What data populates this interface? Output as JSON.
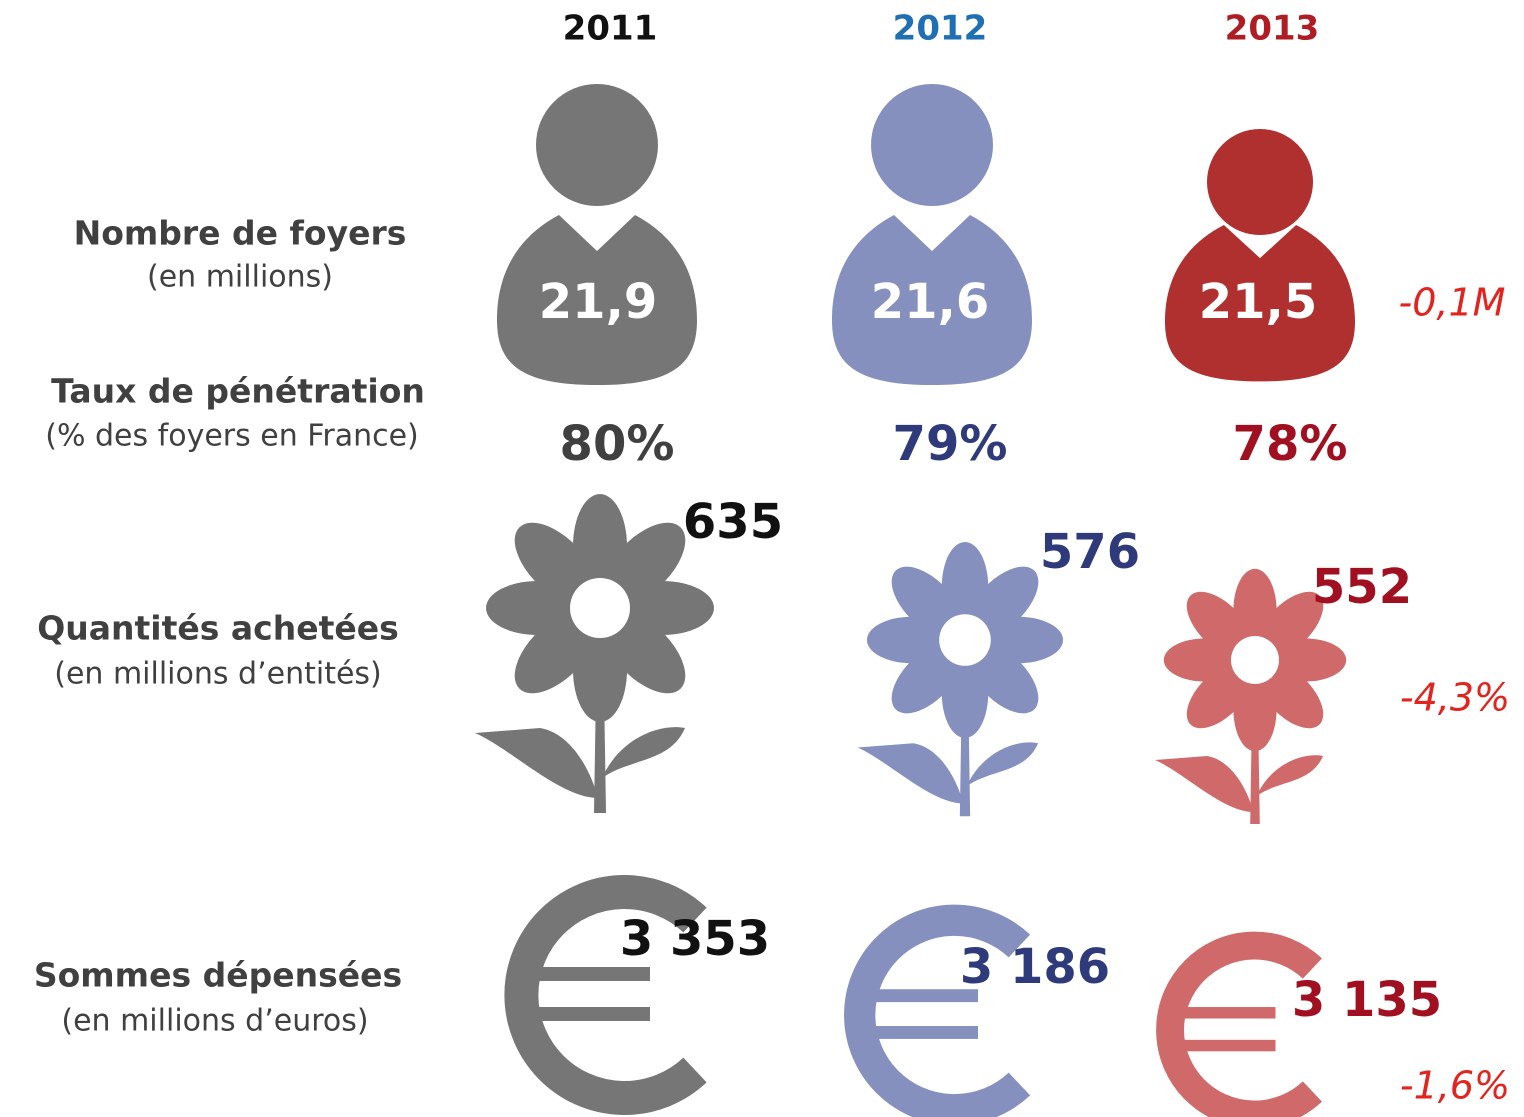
{
  "years": [
    "2011",
    "2012",
    "2013"
  ],
  "rows": [
    {
      "label": "Nombre de foyers",
      "sublabel": "(en millions)",
      "values": [
        "21,9",
        "21,6",
        "21,5"
      ],
      "change": "-0,1M"
    },
    {
      "label": "Taux de pénétration",
      "sublabel": "(% des foyers en France)",
      "values": [
        "80%",
        "79%",
        "78%"
      ]
    },
    {
      "label": "Quantités achetées",
      "sublabel": "(en millions d’entités)",
      "values": [
        "635",
        "576",
        "552"
      ],
      "change": "-4,3%"
    },
    {
      "label": "Sommes dépensées",
      "sublabel": "(en millions d’euros)",
      "values": [
        "3 353",
        "3 186",
        "3 135"
      ],
      "change": "-1,6%"
    }
  ]
}
